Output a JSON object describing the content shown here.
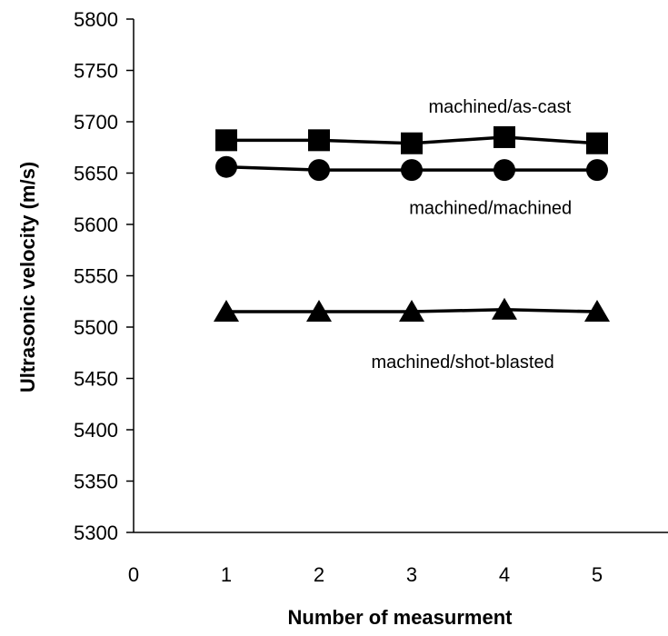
{
  "chart_data": {
    "type": "line",
    "xlabel": "Number of measurment",
    "ylabel": "Ultrasonic velocity (m/s)",
    "xlim": [
      0,
      5
    ],
    "ylim": [
      5300,
      5800
    ],
    "x_ticks": [
      "0",
      "1",
      "2",
      "3",
      "4",
      "5"
    ],
    "y_ticks": [
      "5300",
      "5350",
      "5400",
      "5450",
      "5500",
      "5550",
      "5600",
      "5650",
      "5700",
      "5750",
      "5800"
    ],
    "grid": false,
    "x": [
      1,
      2,
      3,
      4,
      5
    ],
    "series": [
      {
        "marker": "square",
        "values": [
          5682,
          5682,
          5679,
          5685,
          5679
        ]
      },
      {
        "marker": "circle",
        "values": [
          5656,
          5653,
          5653,
          5653,
          5653
        ]
      },
      {
        "marker": "triangle",
        "values": [
          5515,
          5515,
          5515,
          5517,
          5515
        ]
      }
    ],
    "annotations": [
      {
        "text": "machined/as-cast",
        "x": 3.95,
        "y": 5709
      },
      {
        "text": "machined/machined",
        "x": 3.85,
        "y": 5610
      },
      {
        "text": "machined/shot-blasted",
        "x": 3.55,
        "y": 5460
      }
    ],
    "colors": {
      "line": "#000000",
      "marker": "#000000",
      "axis": "#000000"
    }
  }
}
